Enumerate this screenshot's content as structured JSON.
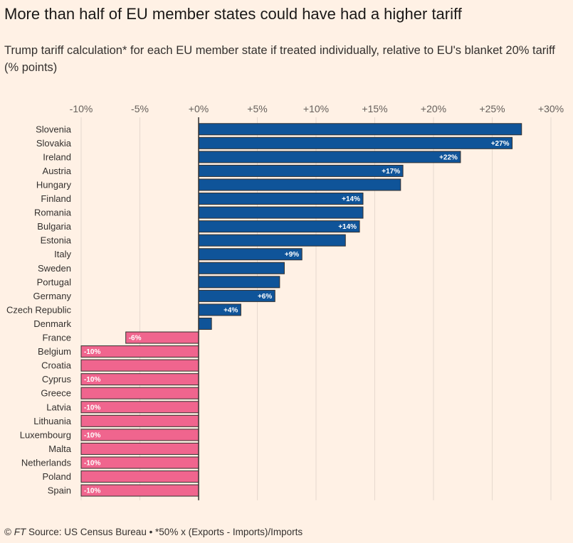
{
  "title": "More than half of EU member states could have had a higher tariff",
  "subtitle": "Trump tariff calculation* for each EU member state if treated individually, relative to EU's blanket 20% tariff (% points)",
  "footer": {
    "copyright": "©",
    "ft": "FT",
    "source": "Source: US Census Bureau • *50% x (Exports - Imports)/Imports"
  },
  "colors": {
    "positive": "#0F5499",
    "negative": "#F0658E",
    "background": "#FFF1E5"
  },
  "chart_data": {
    "type": "bar",
    "orientation": "horizontal",
    "title": "More than half of EU member states could have had a higher tariff",
    "subtitle": "Trump tariff calculation* for each EU member state if treated individually, relative to EU's blanket 20% tariff (% points)",
    "xlim": [
      -10,
      30
    ],
    "xticks": [
      -10,
      -5,
      0,
      5,
      10,
      15,
      20,
      25,
      30
    ],
    "xtick_labels": [
      "-10%",
      "-5%",
      "+0%",
      "+5%",
      "+10%",
      "+15%",
      "+20%",
      "+25%",
      "+30%"
    ],
    "grid": true,
    "categories": [
      "Slovenia",
      "Slovakia",
      "Ireland",
      "Austria",
      "Hungary",
      "Finland",
      "Romania",
      "Bulgaria",
      "Estonia",
      "Italy",
      "Sweden",
      "Portugal",
      "Germany",
      "Czech Republic",
      "Denmark",
      "France",
      "Belgium",
      "Croatia",
      "Cyprus",
      "Greece",
      "Latvia",
      "Lithuania",
      "Luxembourg",
      "Malta",
      "Netherlands",
      "Poland",
      "Spain"
    ],
    "values": [
      27.5,
      26.7,
      22.3,
      17.4,
      17.2,
      14.0,
      14.0,
      13.7,
      12.5,
      8.8,
      7.3,
      6.9,
      6.5,
      3.6,
      1.1,
      -6.2,
      -10,
      -10,
      -10,
      -10,
      -10,
      -10,
      -10,
      -10,
      -10,
      -10,
      -10
    ],
    "data_labels": [
      "",
      "+27%",
      "+22%",
      "+17%",
      "",
      "+14%",
      "",
      "+14%",
      "",
      "+9%",
      "",
      "",
      "+6%",
      "+4%",
      "",
      "-6%",
      "-10%",
      "",
      "-10%",
      "",
      "-10%",
      "",
      "-10%",
      "",
      "-10%",
      "",
      "-10%"
    ]
  }
}
